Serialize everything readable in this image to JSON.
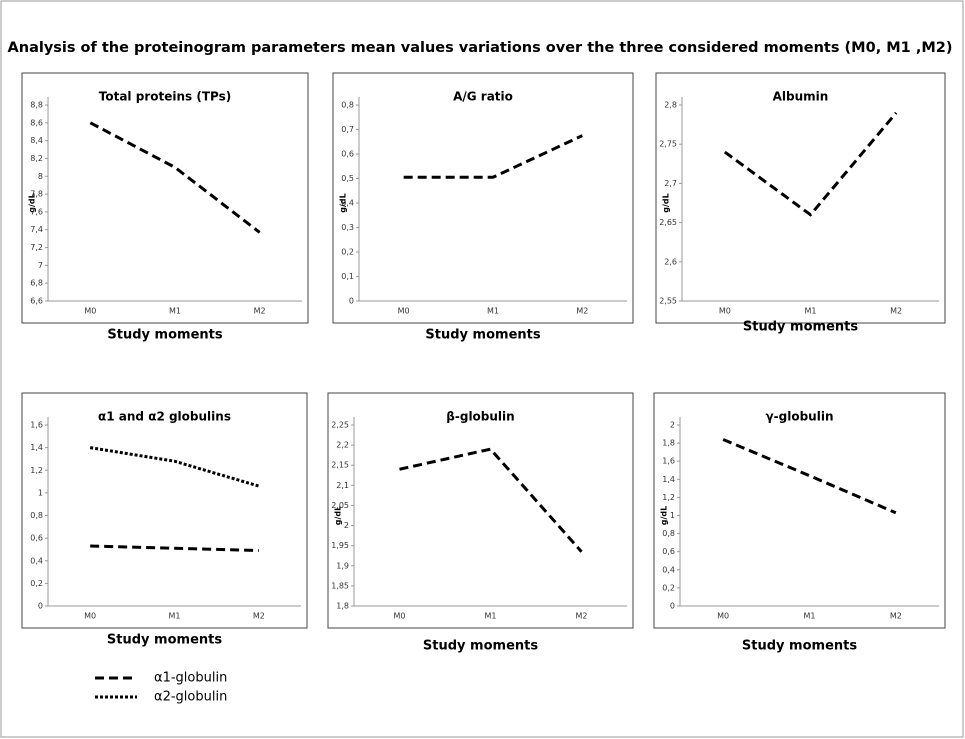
{
  "title": "Analysis of the proteinogram parameters mean values variations over the three considered moments  (M0, M1 ,M2)",
  "chart_data": [
    {
      "type": "line",
      "title": "Total proteins (TPs)",
      "ylabel": "g/dL",
      "xlabel": "Study moments",
      "categories": [
        "M0",
        "M1",
        "M2"
      ],
      "values": [
        8.6,
        8.1,
        7.37
      ],
      "color": "#000000",
      "dash": "dashed",
      "ylim": [
        6.6,
        8.8
      ],
      "yticks": [
        {
          "value": 6.6,
          "label": "6,6"
        },
        {
          "value": 6.8,
          "label": "6,8"
        },
        7,
        {
          "value": 7.2,
          "label": "7,2"
        },
        {
          "value": 7.4,
          "label": "7,4"
        },
        {
          "value": 7.6,
          "label": "7,6"
        },
        {
          "value": 7.8,
          "label": "7,8"
        },
        8,
        {
          "value": 8.2,
          "label": "8,2"
        },
        {
          "value": 8.4,
          "label": "8,4"
        },
        {
          "value": 8.6,
          "label": "8,6"
        },
        {
          "value": 8.8,
          "label": "8,8"
        }
      ]
    },
    {
      "type": "line",
      "title": "A/G ratio",
      "ylabel": "g/dL",
      "xlabel": "Study moments",
      "categories": [
        "M0",
        "M1",
        "M2"
      ],
      "values": [
        0.505,
        0.505,
        0.675
      ],
      "color": "#000000",
      "dash": "dashed",
      "ylim": [
        0,
        0.8
      ],
      "yticks": [
        0,
        {
          "value": 0.1,
          "label": "0,1"
        },
        {
          "value": 0.2,
          "label": "0,2"
        },
        {
          "value": 0.3,
          "label": "0,3"
        },
        {
          "value": 0.4,
          "label": "0,4"
        },
        {
          "value": 0.5,
          "label": "0,5"
        },
        {
          "value": 0.6,
          "label": "0,6"
        },
        {
          "value": 0.7,
          "label": "0,7"
        },
        {
          "value": 0.8,
          "label": "0,8"
        }
      ]
    },
    {
      "type": "line",
      "title": "Albumin",
      "ylabel": "g/dL",
      "xlabel": "Study moments",
      "categories": [
        "M0",
        "M1",
        "M2"
      ],
      "values": [
        2.74,
        2.66,
        2.79
      ],
      "color": "#000000",
      "dash": "dashed",
      "ylim": [
        2.55,
        2.8
      ],
      "yticks": [
        {
          "value": 2.55,
          "label": "2,55"
        },
        {
          "value": 2.6,
          "label": "2,6"
        },
        {
          "value": 2.65,
          "label": "2,65"
        },
        {
          "value": 2.7,
          "label": "2,7"
        },
        {
          "value": 2.75,
          "label": "2,75"
        },
        {
          "value": 2.8,
          "label": "2,8"
        }
      ]
    },
    {
      "type": "line",
      "title": "α1  and α2 globulins",
      "xlabel": "Study moments",
      "categories": [
        "M0",
        "M1",
        "M2"
      ],
      "series": [
        {
          "name": "α1-globulin",
          "color": "#000000",
          "dash": "dashed",
          "values": [
            0.53,
            0.51,
            0.49
          ]
        },
        {
          "name": "α2-globulin",
          "color": "#000000",
          "dash": "dotted",
          "values": [
            1.4,
            1.28,
            1.06
          ]
        }
      ],
      "ylim": [
        0,
        1.6
      ],
      "yticks": [
        0,
        {
          "value": 0.2,
          "label": "0,2"
        },
        {
          "value": 0.4,
          "label": "0,4"
        },
        {
          "value": 0.6,
          "label": "0,6"
        },
        {
          "value": 0.8,
          "label": "0,8"
        },
        1,
        {
          "value": 1.2,
          "label": "1,2"
        },
        {
          "value": 1.4,
          "label": "1,4"
        },
        {
          "value": 1.6,
          "label": "1,6"
        }
      ]
    },
    {
      "type": "line",
      "title": "β-globulin",
      "ylabel": "g/dL",
      "xlabel": "Study moments",
      "categories": [
        "M0",
        "M1",
        "M2"
      ],
      "values": [
        2.14,
        2.19,
        1.935
      ],
      "color": "#000000",
      "dash": "dashed",
      "ylim": [
        1.8,
        2.25
      ],
      "yticks": [
        {
          "value": 1.8,
          "label": "1,8"
        },
        {
          "value": 1.85,
          "label": "1,85"
        },
        {
          "value": 1.9,
          "label": "1,9"
        },
        {
          "value": 1.95,
          "label": "1,95"
        },
        2,
        {
          "value": 2.05,
          "label": "2,05"
        },
        {
          "value": 2.1,
          "label": "2,1"
        },
        {
          "value": 2.15,
          "label": "2,15"
        },
        {
          "value": 2.2,
          "label": "2,2"
        },
        {
          "value": 2.25,
          "label": "2,25"
        }
      ]
    },
    {
      "type": "line",
      "title": "γ-globulin",
      "ylabel": "g/dL",
      "xlabel": "Study moments",
      "categories": [
        "M0",
        "M1",
        "M2"
      ],
      "values": [
        1.84,
        1.44,
        1.03
      ],
      "color": "#000000",
      "dash": "dashed",
      "ylim": [
        0,
        2
      ],
      "yticks": [
        0,
        {
          "value": 0.2,
          "label": "0,2"
        },
        {
          "value": 0.4,
          "label": "0,4"
        },
        {
          "value": 0.6,
          "label": "0,6"
        },
        {
          "value": 0.8,
          "label": "0,8"
        },
        1,
        {
          "value": 1.2,
          "label": "1,2"
        },
        {
          "value": 1.4,
          "label": "1,4"
        },
        {
          "value": 1.6,
          "label": "1,6"
        },
        {
          "value": 1.8,
          "label": "1,8"
        },
        2
      ]
    }
  ]
}
